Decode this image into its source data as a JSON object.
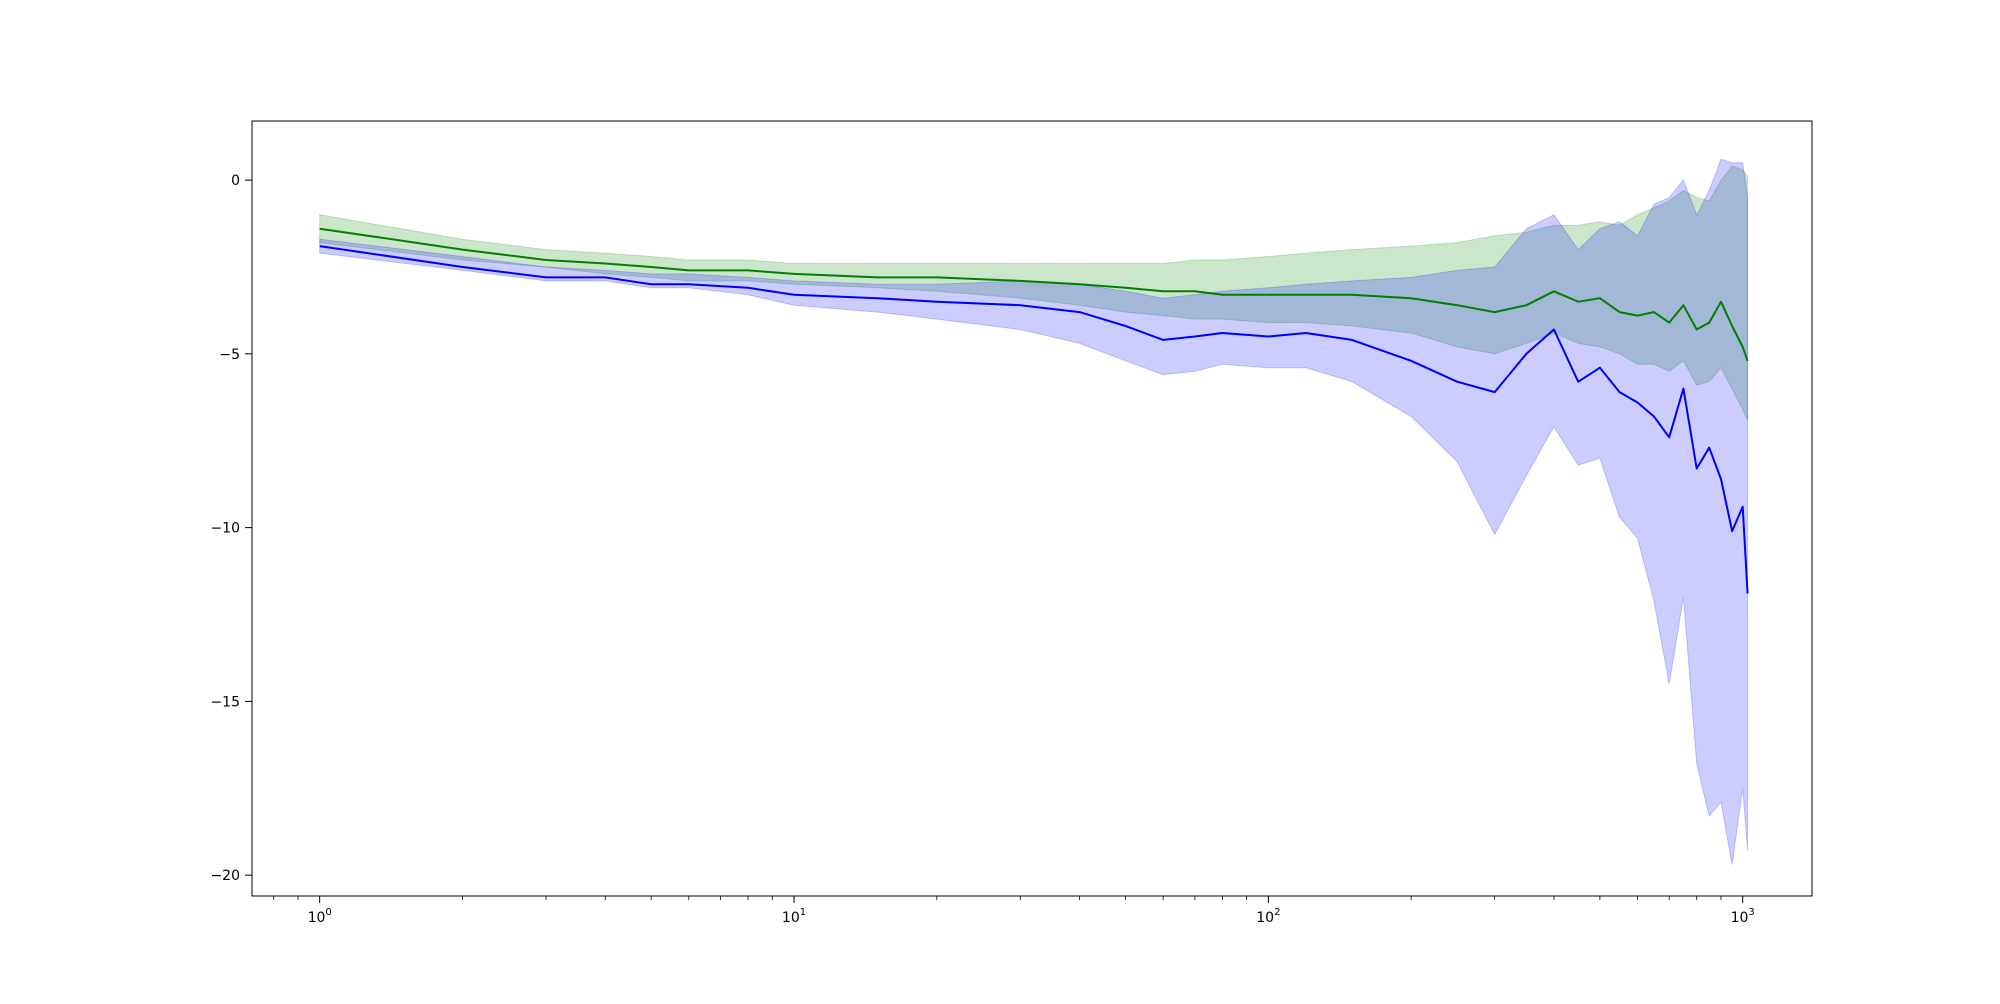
{
  "chart_data": {
    "type": "line",
    "title": "",
    "xlabel": "",
    "ylabel": "",
    "x_scale": "log",
    "xlim": [
      0.72,
      1400
    ],
    "ylim": [
      -20.6,
      1.7
    ],
    "grid": false,
    "x_ticks": [
      {
        "value": 1,
        "base": "10",
        "exp": "0"
      },
      {
        "value": 10,
        "base": "10",
        "exp": "1"
      },
      {
        "value": 100,
        "base": "10",
        "exp": "2"
      },
      {
        "value": 1000,
        "base": "10",
        "exp": "3"
      }
    ],
    "y_ticks": [
      {
        "value": 0,
        "label": "0"
      },
      {
        "value": -5,
        "label": "−5"
      },
      {
        "value": -10,
        "label": "−10"
      },
      {
        "value": -15,
        "label": "−15"
      },
      {
        "value": -20,
        "label": "−20"
      }
    ],
    "series": [
      {
        "color": "#008000",
        "band_color": "#008000",
        "band_opacity": 0.2,
        "x": [
          1,
          2,
          3,
          4,
          5,
          6,
          8,
          10,
          15,
          20,
          30,
          40,
          50,
          60,
          70,
          80,
          100,
          120,
          150,
          200,
          250,
          300,
          350,
          400,
          450,
          500,
          550,
          600,
          650,
          700,
          750,
          800,
          850,
          900,
          950,
          1000,
          1024
        ],
        "y": [
          -1.4,
          -2.0,
          -2.3,
          -2.4,
          -2.5,
          -2.6,
          -2.6,
          -2.7,
          -2.8,
          -2.8,
          -2.9,
          -3.0,
          -3.1,
          -3.2,
          -3.2,
          -3.3,
          -3.3,
          -3.3,
          -3.3,
          -3.4,
          -3.6,
          -3.8,
          -3.6,
          -3.2,
          -3.5,
          -3.4,
          -3.8,
          -3.9,
          -3.8,
          -4.1,
          -3.6,
          -4.3,
          -4.1,
          -3.5,
          -4.2,
          -4.8,
          -5.2
        ],
        "lower": [
          -1.8,
          -2.3,
          -2.5,
          -2.7,
          -2.8,
          -2.9,
          -2.9,
          -3.0,
          -3.1,
          -3.2,
          -3.4,
          -3.6,
          -3.8,
          -3.9,
          -4.0,
          -4.0,
          -4.1,
          -4.1,
          -4.2,
          -4.4,
          -4.8,
          -5.0,
          -4.7,
          -4.4,
          -4.7,
          -4.8,
          -5.0,
          -5.3,
          -5.3,
          -5.5,
          -5.2,
          -5.9,
          -5.8,
          -5.4,
          -6.0,
          -6.6,
          -6.9
        ],
        "upper": [
          -1.0,
          -1.7,
          -2.0,
          -2.1,
          -2.2,
          -2.3,
          -2.3,
          -2.4,
          -2.4,
          -2.4,
          -2.4,
          -2.4,
          -2.4,
          -2.4,
          -2.3,
          -2.3,
          -2.2,
          -2.1,
          -2.0,
          -1.9,
          -1.8,
          -1.6,
          -1.5,
          -1.3,
          -1.3,
          -1.2,
          -1.3,
          -1.0,
          -0.8,
          -0.6,
          -0.3,
          -0.5,
          -0.6,
          0.0,
          0.4,
          0.3,
          0.1
        ]
      },
      {
        "color": "#0000ff",
        "band_color": "#0000ff",
        "band_opacity": 0.2,
        "x": [
          1,
          2,
          3,
          4,
          5,
          6,
          8,
          10,
          15,
          20,
          30,
          40,
          50,
          60,
          70,
          80,
          100,
          120,
          150,
          200,
          250,
          300,
          350,
          400,
          450,
          500,
          550,
          600,
          650,
          700,
          750,
          800,
          850,
          900,
          950,
          1000,
          1024
        ],
        "y": [
          -1.9,
          -2.5,
          -2.8,
          -2.8,
          -3.0,
          -3.0,
          -3.1,
          -3.3,
          -3.4,
          -3.5,
          -3.6,
          -3.8,
          -4.2,
          -4.6,
          -4.5,
          -4.4,
          -4.5,
          -4.4,
          -4.6,
          -5.2,
          -5.8,
          -6.1,
          -5.0,
          -4.3,
          -5.8,
          -5.4,
          -6.1,
          -6.4,
          -6.8,
          -7.4,
          -6.0,
          -8.3,
          -7.7,
          -8.6,
          -10.1,
          -9.4,
          -11.9
        ],
        "lower": [
          -2.1,
          -2.6,
          -2.9,
          -2.9,
          -3.1,
          -3.1,
          -3.3,
          -3.6,
          -3.8,
          -4.0,
          -4.3,
          -4.7,
          -5.2,
          -5.6,
          -5.5,
          -5.3,
          -5.4,
          -5.4,
          -5.8,
          -6.8,
          -8.1,
          -10.2,
          -8.5,
          -7.1,
          -8.2,
          -8.0,
          -9.7,
          -10.3,
          -12.1,
          -14.5,
          -12.0,
          -16.8,
          -18.3,
          -17.9,
          -19.7,
          -17.5,
          -19.3
        ],
        "upper": [
          -1.7,
          -2.2,
          -2.5,
          -2.6,
          -2.7,
          -2.7,
          -2.8,
          -2.9,
          -3.0,
          -3.0,
          -2.9,
          -3.0,
          -3.2,
          -3.4,
          -3.3,
          -3.2,
          -3.1,
          -3.0,
          -2.9,
          -2.8,
          -2.6,
          -2.5,
          -1.4,
          -1.0,
          -2.0,
          -1.4,
          -1.2,
          -1.6,
          -0.7,
          -0.5,
          0.0,
          -1.0,
          -0.3,
          0.6,
          0.5,
          0.5,
          -0.5
        ]
      }
    ]
  }
}
